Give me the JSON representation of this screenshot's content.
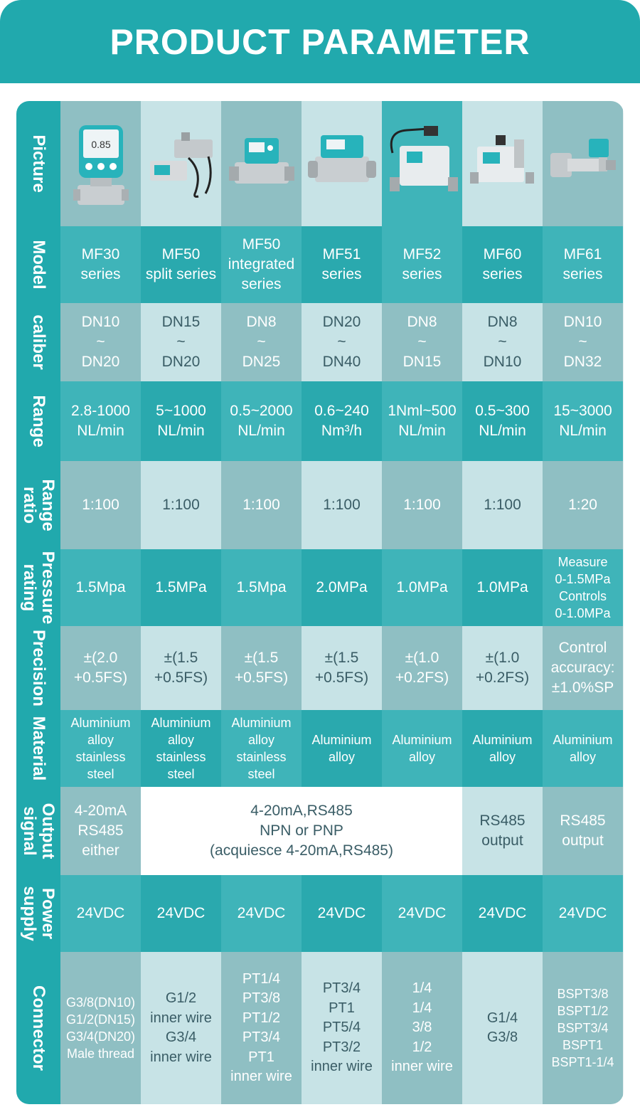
{
  "title": "PRODUCT PARAMETER",
  "headers": {
    "picture": "Picture",
    "model": "Model",
    "caliber": "caliber",
    "range": "Range",
    "range_ratio": "Range\nratio",
    "pressure": "Pressure\nrating",
    "precision": "Precision",
    "material": "Material",
    "output": "Output\nsignal",
    "power": "Power\nsupply",
    "connector": "Connector"
  },
  "model": [
    "MF30\nseries",
    "MF50\nsplit series",
    "MF50\nintegrated\nseries",
    "MF51\nseries",
    "MF52\nseries",
    "MF60\nseries",
    "MF61\nseries"
  ],
  "caliber": [
    "DN10\n~\nDN20",
    "DN15\n~\nDN20",
    "DN8\n~\nDN25",
    "DN20\n~\nDN40",
    "DN8\n~\nDN15",
    "DN8\n~\nDN10",
    "DN10\n~\nDN32"
  ],
  "range": [
    "2.8-1000\nNL/min",
    "5~1000\nNL/min",
    "0.5~2000\nNL/min",
    "0.6~240\nNm³/h",
    "1Nml~500\nNL/min",
    "0.5~300\nNL/min",
    "15~3000\nNL/min"
  ],
  "range_ratio": [
    "1:100",
    "1:100",
    "1:100",
    "1:100",
    "1:100",
    "1:100",
    "1:20"
  ],
  "pressure": [
    "1.5Mpa",
    "1.5MPa",
    "1.5Mpa",
    "2.0MPa",
    "1.0MPa",
    "1.0MPa",
    "Measure\n0-1.5MPa\nControls\n0-1.0MPa"
  ],
  "precision": [
    "±(2.0\n+0.5FS)",
    "±(1.5\n+0.5FS)",
    "±(1.5\n+0.5FS)",
    "±(1.5\n+0.5FS)",
    "±(1.0\n+0.2FS)",
    "±(1.0\n+0.2FS)",
    "Control\naccuracy:\n±1.0%SP"
  ],
  "material": [
    "Aluminium\nalloy\nstainless\nsteel",
    "Aluminium\nalloy\nstainless\nsteel",
    "Aluminium\nalloy\nstainless\nsteel",
    "Aluminium\nalloy",
    "Aluminium\nalloy",
    "Aluminium\nalloy",
    "Aluminium\nalloy"
  ],
  "output": {
    "first": "4-20mA\nRS485\neither",
    "merged": "4-20mA,RS485\nNPN or PNP\n(acquiesce 4-20mA,RS485)",
    "mf60": "RS485\noutput",
    "mf61": "RS485\noutput"
  },
  "power": [
    "24VDC",
    "24VDC",
    "24VDC",
    "24VDC",
    "24VDC",
    "24VDC",
    "24VDC"
  ],
  "connector": [
    "G3/8(DN10)\nG1/2(DN15)\nG3/4(DN20)\nMale thread",
    "G1/2\ninner wire\nG3/4\ninner wire",
    "PT1/4\nPT3/8\nPT1/2\nPT3/4\nPT1\ninner wire",
    "PT3/4\nPT1\nPT5/4\nPT3/2\ninner wire",
    "1/4\n1/4\n3/8\n1/2\ninner wire",
    "G1/4\nG3/8",
    "BSPT3/8\nBSPT1/2\nBSPT3/4\nBSPT1\nBSPT1-1/4"
  ],
  "picture_icons": [
    "mf30-device-icon",
    "mf50-split-device-icon",
    "mf50-integrated-device-icon",
    "mf51-device-icon",
    "mf52-device-icon",
    "mf60-device-icon",
    "mf61-device-icon"
  ],
  "colors": {
    "accent": "#21a9ad",
    "cell_dark": "#8fbfc3",
    "cell_light": "#c7e3e6"
  }
}
